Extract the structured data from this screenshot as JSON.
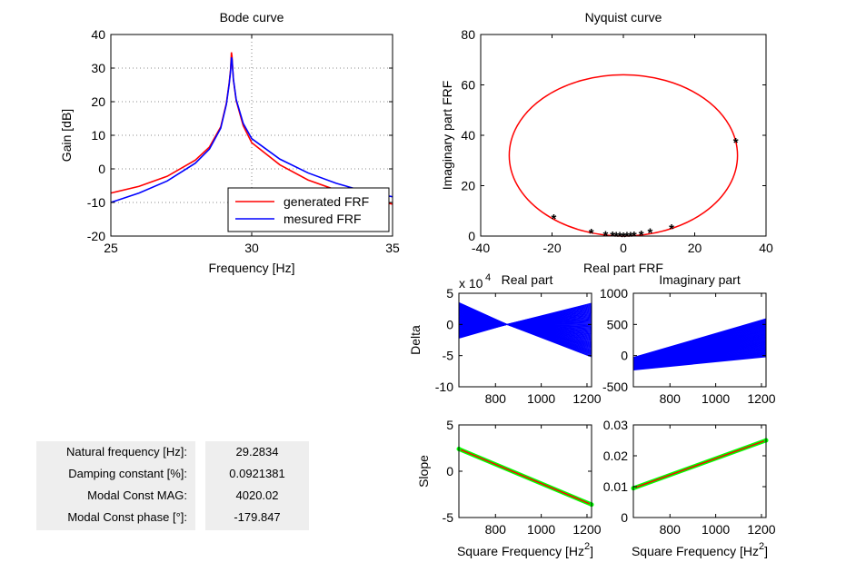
{
  "info_table": {
    "rows": [
      {
        "label": "Natural frequency [Hz]:",
        "value": "29.2834"
      },
      {
        "label": "Damping constant [%]:",
        "value": "0.0921381"
      },
      {
        "label": "Modal Const MAG:",
        "value": "4020.02"
      },
      {
        "label": "Modal Const phase [°]:",
        "value": "-179.847"
      }
    ]
  },
  "chart_data": [
    {
      "id": "bode",
      "type": "line",
      "title": "Bode curve",
      "xlabel": "Frequency  [Hz]",
      "ylabel": "Gain  [dB]",
      "xlim": [
        25,
        35
      ],
      "ylim": [
        -20,
        40
      ],
      "xticks": [
        25,
        30,
        35
      ],
      "yticks": [
        -20,
        -10,
        0,
        10,
        20,
        30,
        40
      ],
      "grid": "dotted",
      "legend": "bottom-right",
      "resonance": {
        "f0": 29.2834,
        "damping_percent": 0.0921381
      },
      "series": [
        {
          "name": "generated FRF",
          "color": "#ff0000",
          "x": [
            25,
            26,
            27,
            28,
            28.5,
            28.9,
            29.1,
            29.2,
            29.25,
            29.28,
            29.3,
            29.35,
            29.45,
            29.7,
            30,
            31,
            32,
            33,
            34,
            35
          ],
          "y": [
            -7.2,
            -5.2,
            -2.2,
            2.6,
            6.5,
            12.5,
            19.5,
            25.5,
            29.6,
            34.7,
            33.5,
            26.5,
            20.3,
            12.8,
            7.8,
            1.2,
            -3.3,
            -6.3,
            -8.7,
            -10.5
          ]
        },
        {
          "name": "mesured FRF",
          "color": "#0000ff",
          "x": [
            25,
            26,
            27,
            28,
            28.5,
            28.9,
            29.1,
            29.2,
            29.25,
            29.28,
            29.3,
            29.35,
            29.45,
            29.7,
            30,
            31,
            32,
            33,
            34,
            35
          ],
          "y": [
            -10,
            -7.2,
            -3.6,
            1.7,
            5.9,
            12.1,
            19.2,
            25.2,
            29.2,
            33.2,
            32.6,
            26.7,
            20.6,
            13.5,
            9.0,
            2.9,
            -1.2,
            -4.3,
            -6.7,
            -8.3
          ]
        }
      ]
    },
    {
      "id": "nyquist",
      "type": "scatter",
      "title": "Nyquist curve",
      "xlabel": "Real part FRF",
      "ylabel": "Imaginary part FRF",
      "xlim": [
        -40,
        40
      ],
      "ylim": [
        0,
        80
      ],
      "xticks": [
        -40,
        -20,
        0,
        20,
        40
      ],
      "yticks": [
        0,
        20,
        40,
        60,
        80
      ],
      "circle": {
        "center": [
          0,
          32
        ],
        "radius": 32,
        "color": "#ff0000"
      },
      "points": {
        "color": "#0000ff",
        "x": [
          31.5,
          -19.5,
          -9,
          -5,
          -3,
          -2,
          -1,
          0,
          1,
          2,
          3,
          5,
          7.5,
          13.5
        ],
        "y": [
          37.5,
          7.2,
          1.5,
          0.6,
          0.35,
          0.2,
          0.1,
          0,
          0.1,
          0.2,
          0.4,
          0.8,
          1.6,
          3.2
        ]
      }
    },
    {
      "id": "delta-real",
      "type": "line",
      "title": "Real part",
      "ylabel": "Delta",
      "exponent_label": "x 10",
      "exponent": "4",
      "xlim": [
        640,
        1220
      ],
      "ylim": [
        -10,
        5
      ],
      "xticks": [
        800,
        1000,
        1200
      ],
      "yticks": [
        -10,
        -5,
        0,
        5
      ],
      "series": [
        {
          "color": "#0000ff",
          "x": [
            640,
            850,
            1220
          ],
          "y_upper": [
            3.5,
            0,
            3.4
          ],
          "y_lower": [
            -2.2,
            0,
            -5.2
          ]
        }
      ]
    },
    {
      "id": "delta-imag",
      "type": "line",
      "title": "Imaginary part",
      "xlim": [
        640,
        1220
      ],
      "ylim": [
        -500,
        1000
      ],
      "xticks": [
        800,
        1000,
        1200
      ],
      "yticks": [
        -500,
        0,
        500,
        1000
      ],
      "series": [
        {
          "color": "#0000ff",
          "x": [
            640,
            1220
          ],
          "y_upper": [
            -30,
            590
          ],
          "y_lower": [
            -230,
            -20
          ]
        }
      ]
    },
    {
      "id": "slope-real",
      "type": "line",
      "ylabel": "Slope",
      "xlabel": "Square Frequency  [Hz",
      "xlabel_sup": "2",
      "xlabel_end": "]",
      "xlim": [
        640,
        1220
      ],
      "ylim": [
        -5,
        5
      ],
      "xticks": [
        800,
        1000,
        1200
      ],
      "yticks": [
        -5,
        0,
        5
      ],
      "series": [
        {
          "color": "#00ff00",
          "x": [
            640,
            1220
          ],
          "y": [
            2.4,
            -3.6
          ]
        },
        {
          "color": "#ff0000",
          "x": [
            640,
            1220
          ],
          "y": [
            2.4,
            -3.6
          ]
        }
      ]
    },
    {
      "id": "slope-imag",
      "type": "line",
      "xlabel": "Square Frequency  [Hz",
      "xlabel_sup": "2",
      "xlabel_end": "]",
      "xlim": [
        640,
        1220
      ],
      "ylim": [
        0,
        0.03
      ],
      "xticks": [
        800,
        1000,
        1200
      ],
      "yticks": [
        0,
        0.01,
        0.02,
        0.03
      ],
      "series": [
        {
          "color": "#00ff00",
          "x": [
            640,
            1220
          ],
          "y": [
            0.0095,
            0.025
          ]
        },
        {
          "color": "#ff0000",
          "x": [
            640,
            1220
          ],
          "y": [
            0.0095,
            0.025
          ]
        }
      ]
    }
  ]
}
